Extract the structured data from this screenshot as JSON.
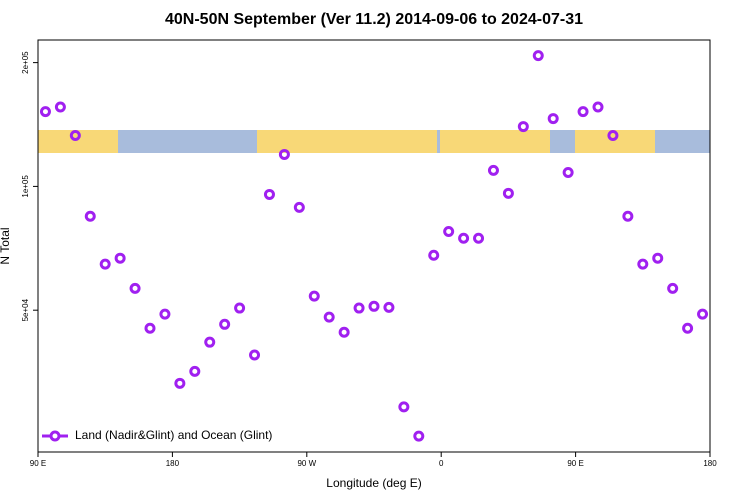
{
  "chart_data": {
    "type": "scatter",
    "title": "40N-50N September (Ver 11.2)   2014-09-06 to 2024-07-31",
    "x_label": "Longitude (deg E)",
    "y_label": "N Total",
    "series": [
      {
        "name": "Land (Nadir&Glint) and Ocean (Glint)",
        "color": "#a020f0",
        "x": [
          95,
          105,
          115,
          125,
          135,
          145,
          155,
          165,
          175,
          185,
          195,
          205,
          215,
          225,
          235,
          245,
          255,
          265,
          275,
          285,
          295,
          305,
          315,
          325,
          335,
          345,
          355,
          365,
          375,
          385,
          395,
          405,
          415,
          425,
          435,
          445,
          455,
          465,
          475,
          485,
          495,
          505,
          515,
          525,
          535
        ],
        "values": [
          152000,
          156000,
          133000,
          84600,
          64700,
          66900,
          56500,
          45200,
          48900,
          33200,
          35500,
          41800,
          46200,
          50600,
          38900,
          95600,
          119600,
          88900,
          54100,
          48100,
          44200,
          50600,
          51100,
          50800,
          29100,
          24700,
          68000,
          77700,
          74800,
          74800,
          109400,
          96200,
          139800,
          208000,
          146200,
          108100,
          152000,
          156000,
          133000,
          84600,
          64700,
          66900,
          56500,
          45200,
          48900
        ]
      }
    ],
    "xlim": [
      90,
      540
    ],
    "xticks": [
      {
        "value": 90,
        "label": "90 E"
      },
      180,
      {
        "value": 270,
        "label": "90 W"
      },
      {
        "value": 360,
        "label": "0"
      },
      {
        "value": 450,
        "label": "90 E"
      },
      {
        "value": 540,
        "label": "180"
      }
    ],
    "ylim": [
      22600,
      227000
    ],
    "ylog": true,
    "yticks": [
      {
        "value": 50000,
        "label": "5e+04"
      },
      {
        "value": 100000,
        "label": "1e+05"
      },
      {
        "value": 200000,
        "label": "2e+05"
      }
    ],
    "legend": "lower left"
  }
}
